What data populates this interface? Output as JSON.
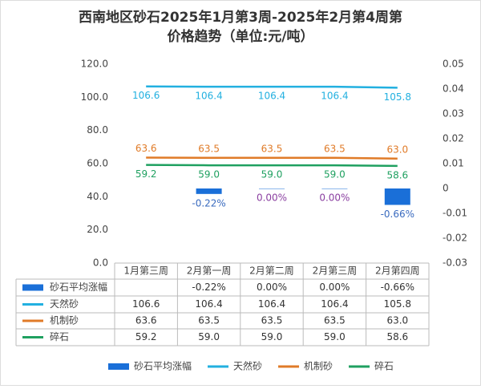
{
  "chart_data": {
    "type": "combo",
    "title": [
      "西南地区砂石2025年1月第3周-2025年2月第4周第",
      "价格趋势（单位:元/吨）"
    ],
    "categories": [
      "1月第三周",
      "2月第一周",
      "2月第二周",
      "2月第三周",
      "2月第四周"
    ],
    "ylim": [
      0,
      120
    ],
    "yticks": [
      {
        "value": 0,
        "label": "0.0"
      },
      {
        "value": 20,
        "label": "20.0"
      },
      {
        "value": 40,
        "label": "40.0"
      },
      {
        "value": 60,
        "label": "60.0"
      },
      {
        "value": 80,
        "label": "80.0"
      },
      {
        "value": 100,
        "label": "100.0"
      },
      {
        "value": 120,
        "label": "120.0"
      }
    ],
    "y2lim": [
      -0.03,
      0.05
    ],
    "y2ticks": [
      -0.03,
      -0.02,
      -0.01,
      0,
      0.01,
      0.02,
      0.03,
      0.04,
      0.05
    ],
    "series": [
      {
        "name": "砂石平均涨幅",
        "type": "bar",
        "axis": "y2",
        "color": "#1a6fd8",
        "values": [
          null,
          -0.0022,
          0,
          0,
          -0.0066
        ],
        "value_labels": [
          null,
          "-0.22%",
          "0.00%",
          "0.00%",
          "-0.66%"
        ]
      },
      {
        "name": "天然砂",
        "type": "line",
        "color": "#22b0e0",
        "values": [
          106.6,
          106.4,
          106.4,
          106.4,
          105.8
        ],
        "value_labels": [
          "106.6",
          "106.4",
          "106.4",
          "106.4",
          "105.8"
        ]
      },
      {
        "name": "机制砂",
        "type": "line",
        "color": "#e07b28",
        "values": [
          63.6,
          63.5,
          63.5,
          63.5,
          63.0
        ],
        "value_labels": [
          "63.6",
          "63.5",
          "63.5",
          "63.5",
          "63.0"
        ]
      },
      {
        "name": "碎石",
        "type": "line",
        "color": "#1fa060",
        "values": [
          59.2,
          59.0,
          59.0,
          59.0,
          58.6
        ],
        "value_labels": [
          "59.2",
          "59.0",
          "59.0",
          "59.0",
          "58.6"
        ]
      }
    ]
  }
}
